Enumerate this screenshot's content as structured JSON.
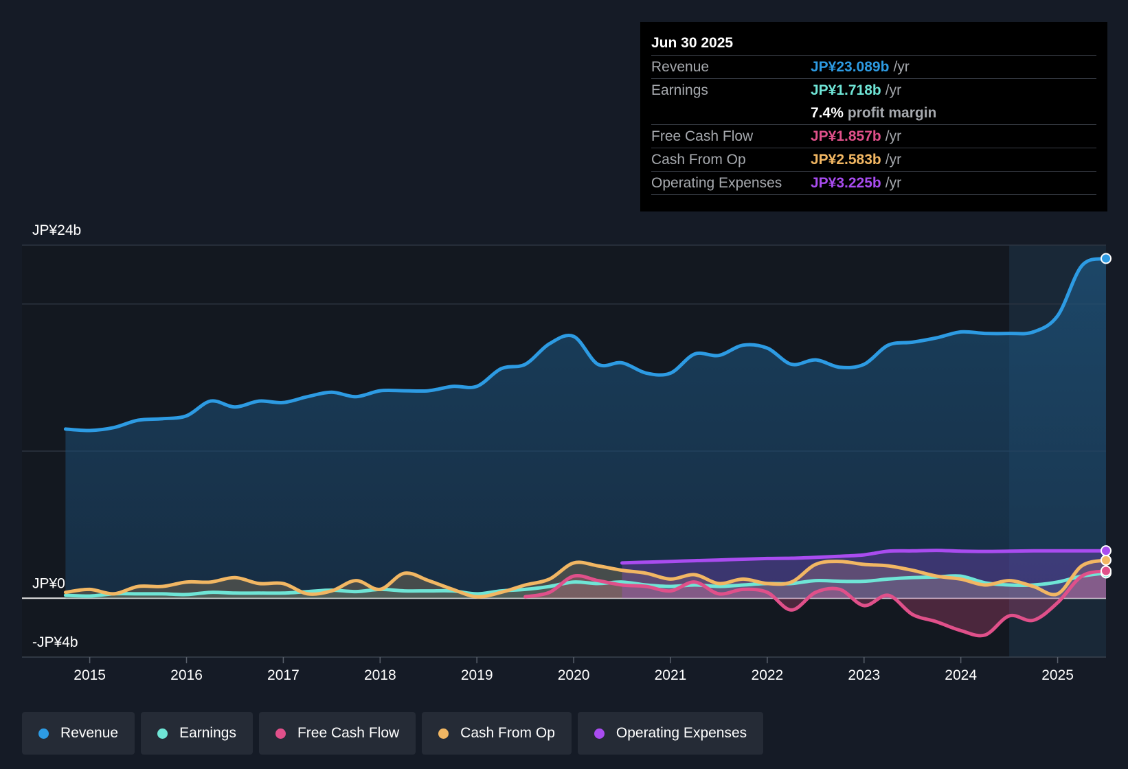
{
  "tooltip": {
    "date": "Jun 30 2025",
    "rows": [
      {
        "name": "Revenue",
        "value": "JP¥23.089b",
        "unit": "/yr",
        "color": "#2d9be3"
      },
      {
        "name": "Earnings",
        "value": "JP¥1.718b",
        "unit": "/yr",
        "color": "#6fe5d6"
      },
      {
        "name": "",
        "value": "7.4%",
        "unit": "profit margin",
        "color": "#ffffff"
      },
      {
        "name": "Free Cash Flow",
        "value": "JP¥1.857b",
        "unit": "/yr",
        "color": "#e0508a"
      },
      {
        "name": "Cash From Op",
        "value": "JP¥2.583b",
        "unit": "/yr",
        "color": "#f2b763"
      },
      {
        "name": "Operating Expenses",
        "value": "JP¥3.225b",
        "unit": "/yr",
        "color": "#a94cf0"
      }
    ]
  },
  "legend": [
    {
      "label": "Revenue",
      "color": "#2d9be3"
    },
    {
      "label": "Earnings",
      "color": "#6fe5d6"
    },
    {
      "label": "Free Cash Flow",
      "color": "#e0508a"
    },
    {
      "label": "Cash From Op",
      "color": "#f2b763"
    },
    {
      "label": "Operating Expenses",
      "color": "#a94cf0"
    }
  ],
  "chart_data": {
    "type": "area",
    "title": "",
    "xlabel": "",
    "ylabel": "",
    "x_ticks": [
      "2015",
      "2016",
      "2017",
      "2018",
      "2019",
      "2020",
      "2021",
      "2022",
      "2023",
      "2024",
      "2025"
    ],
    "y_axis_labels": [
      {
        "value": 24,
        "label": "JP¥24b"
      },
      {
        "value": 0,
        "label": "JP¥0"
      },
      {
        "value": -4,
        "label": "-JP¥4b"
      }
    ],
    "ylim": [
      -4,
      24
    ],
    "xlim": [
      2014.3,
      2025.5
    ],
    "x_forecast_start": 2024.5,
    "series": [
      {
        "name": "Revenue",
        "color": "#2d9be3",
        "points": [
          [
            2014.75,
            11.5
          ],
          [
            2015.0,
            11.4
          ],
          [
            2015.25,
            11.6
          ],
          [
            2015.5,
            12.1
          ],
          [
            2015.75,
            12.2
          ],
          [
            2016.0,
            12.4
          ],
          [
            2016.25,
            13.4
          ],
          [
            2016.5,
            13.0
          ],
          [
            2016.75,
            13.4
          ],
          [
            2017.0,
            13.3
          ],
          [
            2017.25,
            13.7
          ],
          [
            2017.5,
            14.0
          ],
          [
            2017.75,
            13.7
          ],
          [
            2018.0,
            14.1
          ],
          [
            2018.25,
            14.1
          ],
          [
            2018.5,
            14.1
          ],
          [
            2018.75,
            14.4
          ],
          [
            2019.0,
            14.4
          ],
          [
            2019.25,
            15.6
          ],
          [
            2019.5,
            15.9
          ],
          [
            2019.75,
            17.3
          ],
          [
            2020.0,
            17.8
          ],
          [
            2020.25,
            15.9
          ],
          [
            2020.5,
            16.0
          ],
          [
            2020.75,
            15.3
          ],
          [
            2021.0,
            15.3
          ],
          [
            2021.25,
            16.6
          ],
          [
            2021.5,
            16.5
          ],
          [
            2021.75,
            17.2
          ],
          [
            2022.0,
            17.0
          ],
          [
            2022.25,
            15.9
          ],
          [
            2022.5,
            16.2
          ],
          [
            2022.75,
            15.7
          ],
          [
            2023.0,
            15.9
          ],
          [
            2023.25,
            17.2
          ],
          [
            2023.5,
            17.4
          ],
          [
            2023.75,
            17.7
          ],
          [
            2024.0,
            18.1
          ],
          [
            2024.25,
            18.0
          ],
          [
            2024.5,
            18.0
          ],
          [
            2024.75,
            18.1
          ],
          [
            2025.0,
            19.2
          ],
          [
            2025.25,
            22.6
          ],
          [
            2025.5,
            23.089
          ]
        ]
      },
      {
        "name": "Earnings",
        "color": "#6fe5d6",
        "points": [
          [
            2014.75,
            0.2
          ],
          [
            2015.0,
            0.15
          ],
          [
            2015.25,
            0.3
          ],
          [
            2015.5,
            0.3
          ],
          [
            2015.75,
            0.3
          ],
          [
            2016.0,
            0.25
          ],
          [
            2016.25,
            0.4
          ],
          [
            2016.5,
            0.35
          ],
          [
            2016.75,
            0.35
          ],
          [
            2017.0,
            0.35
          ],
          [
            2017.25,
            0.45
          ],
          [
            2017.5,
            0.55
          ],
          [
            2017.75,
            0.45
          ],
          [
            2018.0,
            0.6
          ],
          [
            2018.25,
            0.5
          ],
          [
            2018.5,
            0.5
          ],
          [
            2018.75,
            0.5
          ],
          [
            2019.0,
            0.3
          ],
          [
            2019.25,
            0.5
          ],
          [
            2019.5,
            0.6
          ],
          [
            2019.75,
            0.8
          ],
          [
            2020.0,
            1.1
          ],
          [
            2020.25,
            1.0
          ],
          [
            2020.5,
            1.1
          ],
          [
            2020.75,
            0.9
          ],
          [
            2021.0,
            0.8
          ],
          [
            2021.25,
            0.9
          ],
          [
            2021.5,
            0.8
          ],
          [
            2021.75,
            0.9
          ],
          [
            2022.0,
            1.0
          ],
          [
            2022.25,
            1.0
          ],
          [
            2022.5,
            1.2
          ],
          [
            2022.75,
            1.15
          ],
          [
            2023.0,
            1.15
          ],
          [
            2023.25,
            1.3
          ],
          [
            2023.5,
            1.4
          ],
          [
            2023.75,
            1.45
          ],
          [
            2024.0,
            1.5
          ],
          [
            2024.25,
            1.05
          ],
          [
            2024.5,
            0.9
          ],
          [
            2024.75,
            0.9
          ],
          [
            2025.0,
            1.1
          ],
          [
            2025.25,
            1.5
          ],
          [
            2025.5,
            1.718
          ]
        ]
      },
      {
        "name": "Free Cash Flow",
        "color": "#e0508a",
        "points": [
          [
            2019.5,
            0.1
          ],
          [
            2019.75,
            0.4
          ],
          [
            2020.0,
            1.5
          ],
          [
            2020.25,
            1.2
          ],
          [
            2020.5,
            0.9
          ],
          [
            2020.75,
            0.8
          ],
          [
            2021.0,
            0.5
          ],
          [
            2021.25,
            1.1
          ],
          [
            2021.5,
            0.3
          ],
          [
            2021.75,
            0.6
          ],
          [
            2022.0,
            0.4
          ],
          [
            2022.25,
            -0.8
          ],
          [
            2022.5,
            0.4
          ],
          [
            2022.75,
            0.6
          ],
          [
            2023.0,
            -0.5
          ],
          [
            2023.25,
            0.2
          ],
          [
            2023.5,
            -1.1
          ],
          [
            2023.75,
            -1.6
          ],
          [
            2024.0,
            -2.2
          ],
          [
            2024.25,
            -2.5
          ],
          [
            2024.5,
            -1.2
          ],
          [
            2024.75,
            -1.5
          ],
          [
            2025.0,
            -0.3
          ],
          [
            2025.25,
            1.5
          ],
          [
            2025.5,
            1.857
          ]
        ]
      },
      {
        "name": "Cash From Op",
        "color": "#f2b763",
        "points": [
          [
            2014.75,
            0.4
          ],
          [
            2015.0,
            0.6
          ],
          [
            2015.25,
            0.3
          ],
          [
            2015.5,
            0.8
          ],
          [
            2015.75,
            0.8
          ],
          [
            2016.0,
            1.1
          ],
          [
            2016.25,
            1.1
          ],
          [
            2016.5,
            1.4
          ],
          [
            2016.75,
            1.0
          ],
          [
            2017.0,
            1.0
          ],
          [
            2017.25,
            0.3
          ],
          [
            2017.5,
            0.5
          ],
          [
            2017.75,
            1.2
          ],
          [
            2018.0,
            0.6
          ],
          [
            2018.25,
            1.7
          ],
          [
            2018.5,
            1.2
          ],
          [
            2018.75,
            0.6
          ],
          [
            2019.0,
            0.1
          ],
          [
            2019.25,
            0.4
          ],
          [
            2019.5,
            0.9
          ],
          [
            2019.75,
            1.3
          ],
          [
            2020.0,
            2.4
          ],
          [
            2020.25,
            2.2
          ],
          [
            2020.5,
            1.9
          ],
          [
            2020.75,
            1.7
          ],
          [
            2021.0,
            1.3
          ],
          [
            2021.25,
            1.6
          ],
          [
            2021.5,
            1.0
          ],
          [
            2021.75,
            1.3
          ],
          [
            2022.0,
            1.0
          ],
          [
            2022.25,
            1.1
          ],
          [
            2022.5,
            2.3
          ],
          [
            2022.75,
            2.5
          ],
          [
            2023.0,
            2.3
          ],
          [
            2023.25,
            2.2
          ],
          [
            2023.5,
            1.9
          ],
          [
            2023.75,
            1.5
          ],
          [
            2024.0,
            1.3
          ],
          [
            2024.25,
            0.9
          ],
          [
            2024.5,
            1.2
          ],
          [
            2024.75,
            0.8
          ],
          [
            2025.0,
            0.3
          ],
          [
            2025.25,
            2.2
          ],
          [
            2025.5,
            2.583
          ]
        ]
      },
      {
        "name": "Operating Expenses",
        "color": "#a94cf0",
        "points": [
          [
            2020.5,
            2.4
          ],
          [
            2020.75,
            2.45
          ],
          [
            2021.0,
            2.5
          ],
          [
            2021.25,
            2.55
          ],
          [
            2021.5,
            2.6
          ],
          [
            2021.75,
            2.65
          ],
          [
            2022.0,
            2.7
          ],
          [
            2022.25,
            2.72
          ],
          [
            2022.5,
            2.78
          ],
          [
            2022.75,
            2.85
          ],
          [
            2023.0,
            2.95
          ],
          [
            2023.25,
            3.2
          ],
          [
            2023.5,
            3.22
          ],
          [
            2023.75,
            3.25
          ],
          [
            2024.0,
            3.2
          ],
          [
            2024.25,
            3.18
          ],
          [
            2024.5,
            3.2
          ],
          [
            2024.75,
            3.22
          ],
          [
            2025.0,
            3.22
          ],
          [
            2025.25,
            3.22
          ],
          [
            2025.5,
            3.225
          ]
        ]
      }
    ]
  }
}
